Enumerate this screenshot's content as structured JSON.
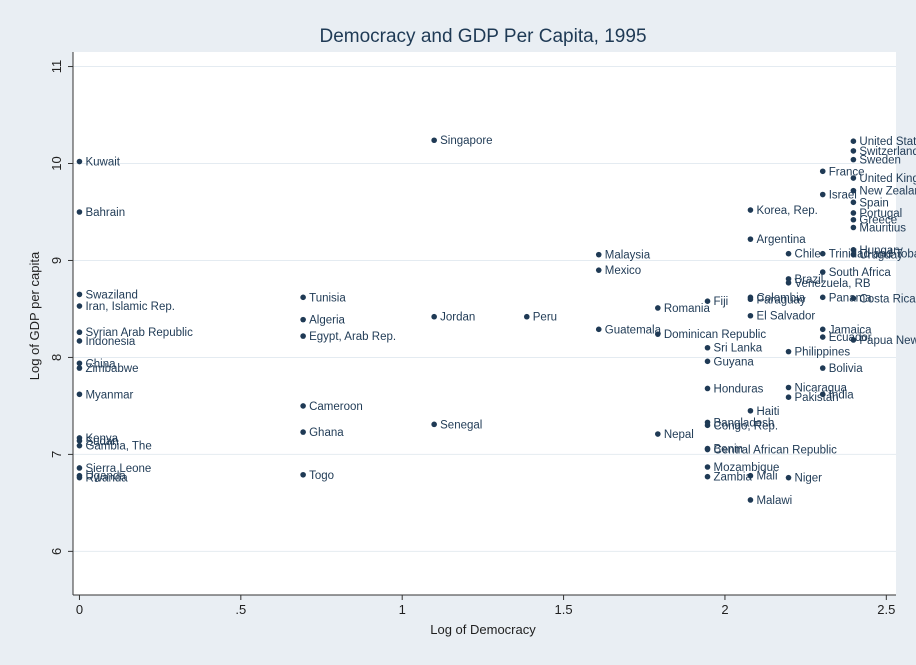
{
  "chart_data": {
    "type": "scatter",
    "title": "Democracy and GDP Per Capita, 1995",
    "xlabel": "Log of Democracy",
    "ylabel": "Log of GDP per capita",
    "xlim": [
      -0.02,
      2.53
    ],
    "ylim": [
      5.55,
      11.15
    ],
    "x_ticks": [
      0,
      0.5,
      1,
      1.5,
      2,
      2.5
    ],
    "x_tick_labels": [
      "0",
      ".5",
      "1",
      "1.5",
      "2",
      "2.5"
    ],
    "y_ticks": [
      6,
      7,
      8,
      9,
      10,
      11
    ],
    "y_tick_labels": [
      "6",
      "7",
      "8",
      "9",
      "10",
      "11"
    ],
    "grid": "horizontal",
    "marker_color": "#1f3a55",
    "points": [
      {
        "label": "Kuwait",
        "x": 0,
        "y": 10.02
      },
      {
        "label": "Bahrain",
        "x": 0,
        "y": 9.5
      },
      {
        "label": "Swaziland",
        "x": 0,
        "y": 8.65
      },
      {
        "label": "Iran, Islamic Rep.",
        "x": 0,
        "y": 8.53
      },
      {
        "label": "Syrian Arab Republic",
        "x": 0,
        "y": 8.26
      },
      {
        "label": "Indonesia",
        "x": 0,
        "y": 8.17
      },
      {
        "label": "China",
        "x": 0,
        "y": 7.94
      },
      {
        "label": "Zimbabwe",
        "x": 0,
        "y": 7.89
      },
      {
        "label": "Myanmar",
        "x": 0,
        "y": 7.62
      },
      {
        "label": "Kenya",
        "x": 0,
        "y": 7.17
      },
      {
        "label": "Sudan",
        "x": 0,
        "y": 7.14
      },
      {
        "label": "Gambia, The",
        "x": 0,
        "y": 7.09
      },
      {
        "label": "Sierra Leone",
        "x": 0,
        "y": 6.86
      },
      {
        "label": "Uganda",
        "x": 0,
        "y": 6.78
      },
      {
        "label": "Rwanda",
        "x": 0,
        "y": 6.76
      },
      {
        "label": "Tunisia",
        "x": 0.693,
        "y": 8.62
      },
      {
        "label": "Algeria",
        "x": 0.693,
        "y": 8.39
      },
      {
        "label": "Egypt, Arab Rep.",
        "x": 0.693,
        "y": 8.22
      },
      {
        "label": "Cameroon",
        "x": 0.693,
        "y": 7.5
      },
      {
        "label": "Ghana",
        "x": 0.693,
        "y": 7.23
      },
      {
        "label": "Togo",
        "x": 0.693,
        "y": 6.79
      },
      {
        "label": "Singapore",
        "x": 1.099,
        "y": 10.24
      },
      {
        "label": "Jordan",
        "x": 1.099,
        "y": 8.42
      },
      {
        "label": "Senegal",
        "x": 1.099,
        "y": 7.31
      },
      {
        "label": "Peru",
        "x": 1.386,
        "y": 8.42
      },
      {
        "label": "Malaysia",
        "x": 1.609,
        "y": 9.06
      },
      {
        "label": "Mexico",
        "x": 1.609,
        "y": 8.9
      },
      {
        "label": "Guatemala",
        "x": 1.609,
        "y": 8.29
      },
      {
        "label": "Romania",
        "x": 1.792,
        "y": 8.51
      },
      {
        "label": "Dominican Republic",
        "x": 1.792,
        "y": 8.24
      },
      {
        "label": "Nepal",
        "x": 1.792,
        "y": 7.21
      },
      {
        "label": "Fiji",
        "x": 1.946,
        "y": 8.58
      },
      {
        "label": "Sri Lanka",
        "x": 1.946,
        "y": 8.1
      },
      {
        "label": "Guyana",
        "x": 1.946,
        "y": 7.96
      },
      {
        "label": "Honduras",
        "x": 1.946,
        "y": 7.68
      },
      {
        "label": "Bangladesh",
        "x": 1.946,
        "y": 7.33
      },
      {
        "label": "Congo, Rep.",
        "x": 1.946,
        "y": 7.3
      },
      {
        "label": "Benin",
        "x": 1.946,
        "y": 7.06
      },
      {
        "label": "Central African Republic",
        "x": 1.946,
        "y": 7.05
      },
      {
        "label": "Mozambique",
        "x": 1.946,
        "y": 6.87
      },
      {
        "label": "Zambia",
        "x": 1.946,
        "y": 6.77
      },
      {
        "label": "Korea, Rep.",
        "x": 2.079,
        "y": 9.52
      },
      {
        "label": "Argentina",
        "x": 2.079,
        "y": 9.22
      },
      {
        "label": "Colombia",
        "x": 2.079,
        "y": 8.62
      },
      {
        "label": "Paraguay",
        "x": 2.079,
        "y": 8.6
      },
      {
        "label": "El Salvador",
        "x": 2.079,
        "y": 8.43
      },
      {
        "label": "Haiti",
        "x": 2.079,
        "y": 7.45
      },
      {
        "label": "Mali",
        "x": 2.079,
        "y": 6.78
      },
      {
        "label": "Malawi",
        "x": 2.079,
        "y": 6.53
      },
      {
        "label": "Chile",
        "x": 2.197,
        "y": 9.07
      },
      {
        "label": "Brazil",
        "x": 2.197,
        "y": 8.81
      },
      {
        "label": "Venezuela, RB",
        "x": 2.197,
        "y": 8.77
      },
      {
        "label": "Philippines",
        "x": 2.197,
        "y": 8.06
      },
      {
        "label": "Nicaragua",
        "x": 2.197,
        "y": 7.69
      },
      {
        "label": "Pakistan",
        "x": 2.197,
        "y": 7.59
      },
      {
        "label": "Niger",
        "x": 2.197,
        "y": 6.76
      },
      {
        "label": "France",
        "x": 2.303,
        "y": 9.92
      },
      {
        "label": "Israel",
        "x": 2.303,
        "y": 9.68
      },
      {
        "label": "Trinidad and Tobago",
        "x": 2.303,
        "y": 9.07
      },
      {
        "label": "South Africa",
        "x": 2.303,
        "y": 8.88
      },
      {
        "label": "Panama",
        "x": 2.303,
        "y": 8.62
      },
      {
        "label": "Jamaica",
        "x": 2.303,
        "y": 8.29
      },
      {
        "label": "Ecuador",
        "x": 2.303,
        "y": 8.21
      },
      {
        "label": "Bolivia",
        "x": 2.303,
        "y": 7.89
      },
      {
        "label": "India",
        "x": 2.303,
        "y": 7.62
      },
      {
        "label": "United States",
        "x": 2.398,
        "y": 10.23
      },
      {
        "label": "Switzerland",
        "x": 2.398,
        "y": 10.13
      },
      {
        "label": "Sweden",
        "x": 2.398,
        "y": 10.04
      },
      {
        "label": "United Kingdom",
        "x": 2.398,
        "y": 9.85
      },
      {
        "label": "New Zealand",
        "x": 2.398,
        "y": 9.72
      },
      {
        "label": "Spain",
        "x": 2.398,
        "y": 9.6
      },
      {
        "label": "Portugal",
        "x": 2.398,
        "y": 9.49
      },
      {
        "label": "Greece",
        "x": 2.398,
        "y": 9.42
      },
      {
        "label": "Mauritius",
        "x": 2.398,
        "y": 9.34
      },
      {
        "label": "Hungary",
        "x": 2.398,
        "y": 9.11
      },
      {
        "label": "Uruguay",
        "x": 2.398,
        "y": 9.06
      },
      {
        "label": "Costa Rica",
        "x": 2.398,
        "y": 8.61
      },
      {
        "label": "Papua New Guinea",
        "x": 2.398,
        "y": 8.18
      }
    ]
  }
}
